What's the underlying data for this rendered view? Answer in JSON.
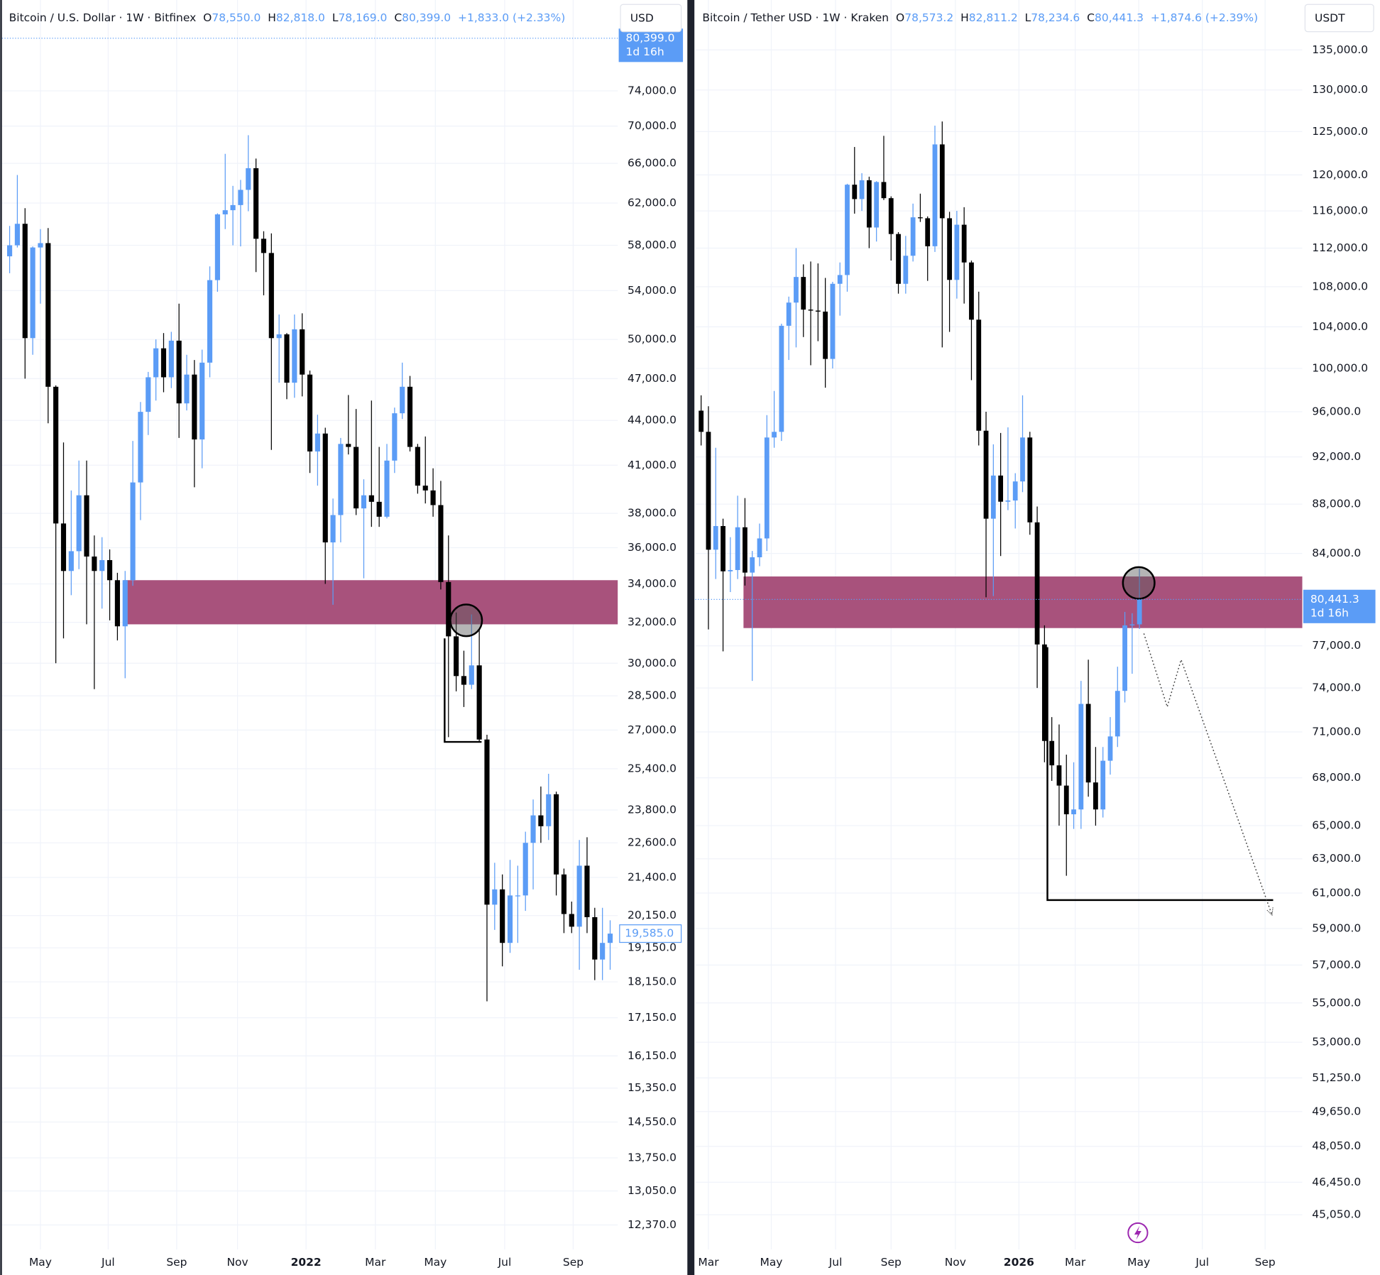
{
  "chart_data": [
    {
      "type": "candlestick",
      "header": {
        "symbol": "Bitcoin / U.S. Dollar · 1W · Bitfinex",
        "ohlc": [
          {
            "key": "O",
            "value": "78,550.0"
          },
          {
            "key": "H",
            "value": "82,818.0"
          },
          {
            "key": "L",
            "value": "78,169.0"
          },
          {
            "key": "C",
            "value": "80,399.0"
          }
        ],
        "change": "+1,833.0 (+2.33%)"
      },
      "currency": "USD",
      "open": [
        57000,
        58000,
        60000,
        50100,
        57800,
        58200,
        46400,
        37400,
        34700,
        35800,
        39100,
        35500,
        34700,
        35300,
        34200,
        31800,
        34200,
        39900,
        44600,
        47100,
        49300,
        47100,
        49900,
        45200,
        47300,
        42700,
        48200,
        54900,
        60900,
        61300,
        61800,
        63300,
        65500,
        58600,
        57300,
        50100,
        50400,
        46700,
        50800,
        47300,
        41900,
        43100,
        36300,
        37900,
        42400,
        42200,
        38300,
        39100,
        38700,
        37800,
        41300,
        44500,
        46400,
        42200,
        39700,
        39400,
        38500,
        34100,
        31300,
        29400,
        29000,
        29900,
        26600,
        20500,
        21000,
        19300,
        20800,
        20800,
        22600,
        23600,
        23200,
        24400,
        21500,
        20200,
        19800,
        21800,
        20100,
        18800,
        19300
      ],
      "high": [
        59800,
        64800,
        61500,
        57900,
        59500,
        59600,
        46500,
        42500,
        39400,
        41300,
        41300,
        36700,
        36600,
        35900,
        34600,
        34700,
        42600,
        45300,
        47500,
        50000,
        50500,
        50600,
        52900,
        48800,
        48400,
        49200,
        56100,
        61000,
        67000,
        63700,
        64300,
        69000,
        66500,
        59300,
        59100,
        52000,
        50500,
        52000,
        52100,
        47600,
        44400,
        43500,
        38900,
        42800,
        45800,
        44800,
        40100,
        45400,
        42200,
        42400,
        44900,
        48200,
        47200,
        42400,
        42900,
        40800,
        40000,
        36700,
        32500,
        30600,
        32400,
        31700,
        26800,
        21900,
        21500,
        22000,
        21800,
        23000,
        24200,
        24700,
        25200,
        24500,
        21700,
        20600,
        22700,
        22800,
        20400,
        20400,
        20000
      ],
      "low": [
        55500,
        57800,
        47000,
        48800,
        52900,
        43800,
        30000,
        31200,
        33400,
        34800,
        31900,
        28800,
        32700,
        32100,
        31100,
        29300,
        33900,
        37600,
        43000,
        45400,
        46000,
        46300,
        42800,
        44700,
        39600,
        40800,
        47100,
        53900,
        59500,
        58000,
        57900,
        61200,
        55600,
        53600,
        42000,
        46700,
        45500,
        45600,
        45700,
        40500,
        39700,
        34000,
        32900,
        36300,
        41700,
        37900,
        34300,
        37200,
        37200,
        37700,
        40500,
        44100,
        41900,
        39200,
        38600,
        37800,
        33700,
        26700,
        28700,
        28000,
        28800,
        26500,
        17600,
        19700,
        18600,
        19000,
        19300,
        20300,
        21000,
        22600,
        22700,
        20800,
        19600,
        19600,
        18500,
        19600,
        18200,
        18200,
        18500
      ],
      "close": [
        58000,
        60000,
        50100,
        57800,
        58200,
        46400,
        37400,
        34700,
        35800,
        39100,
        35500,
        34700,
        35300,
        34200,
        31800,
        34200,
        39900,
        44600,
        47100,
        49300,
        47100,
        49900,
        45200,
        47300,
        42700,
        48200,
        54900,
        60900,
        61300,
        61800,
        63300,
        65500,
        58600,
        57300,
        50100,
        50400,
        46700,
        50800,
        47300,
        41900,
        43100,
        36300,
        37900,
        42400,
        42200,
        38300,
        39100,
        38700,
        37800,
        41300,
        44500,
        46400,
        42200,
        39700,
        39400,
        38500,
        34100,
        31300,
        29400,
        29000,
        29900,
        26600,
        20500,
        21000,
        19300,
        20800,
        20800,
        22600,
        23600,
        23200,
        24400,
        21500,
        20200,
        19800,
        21800,
        20100,
        18800,
        19300,
        19585
      ],
      "up_color": "#5b9cf6",
      "down_color": "#000000",
      "xlim": [
        -1,
        79
      ],
      "xticks": [
        {
          "value": 4,
          "label": "May"
        },
        {
          "value": 12.8,
          "label": "Jul"
        },
        {
          "value": 21.7,
          "label": "Sep"
        },
        {
          "value": 29.6,
          "label": "Nov"
        },
        {
          "value": 38.5,
          "label": "2022"
        },
        {
          "value": 47.5,
          "label": "Mar"
        },
        {
          "value": 55.3,
          "label": "May"
        },
        {
          "value": 64.3,
          "label": "Jul"
        },
        {
          "value": 73.2,
          "label": "Sep"
        }
      ],
      "ylim": [
        11900,
        85400
      ],
      "log_scale": true,
      "grid": true,
      "yticks": [
        {
          "value": 74000,
          "label": "74,000.0"
        },
        {
          "value": 70000,
          "label": "70,000.0"
        },
        {
          "value": 66000,
          "label": "66,000.0"
        },
        {
          "value": 62000,
          "label": "62,000.0"
        },
        {
          "value": 58000,
          "label": "58,000.0"
        },
        {
          "value": 54000,
          "label": "54,000.0"
        },
        {
          "value": 50000,
          "label": "50,000.0"
        },
        {
          "value": 47000,
          "label": "47,000.0"
        },
        {
          "value": 44000,
          "label": "44,000.0"
        },
        {
          "value": 41000,
          "label": "41,000.0"
        },
        {
          "value": 38000,
          "label": "38,000.0"
        },
        {
          "value": 36000,
          "label": "36,000.0"
        },
        {
          "value": 34000,
          "label": "34,000.0"
        },
        {
          "value": 32000,
          "label": "32,000.0"
        },
        {
          "value": 30000,
          "label": "30,000.0"
        },
        {
          "value": 28500,
          "label": "28,500.0"
        },
        {
          "value": 27000,
          "label": "27,000.0"
        },
        {
          "value": 25400,
          "label": "25,400.0"
        },
        {
          "value": 23800,
          "label": "23,800.0"
        },
        {
          "value": 22600,
          "label": "22,600.0"
        },
        {
          "value": 21400,
          "label": "21,400.0"
        },
        {
          "value": 20150,
          "label": "20,150.0"
        },
        {
          "value": 19150,
          "label": "19,150.0"
        },
        {
          "value": 18150,
          "label": "18,150.0"
        },
        {
          "value": 17150,
          "label": "17,150.0"
        },
        {
          "value": 16150,
          "label": "16,150.0"
        },
        {
          "value": 15350,
          "label": "15,350.0"
        },
        {
          "value": 14550,
          "label": "14,550.0"
        },
        {
          "value": 13750,
          "label": "13,750.0"
        },
        {
          "value": 13050,
          "label": "13,050.0"
        },
        {
          "value": 12370,
          "label": "12,370.0"
        }
      ],
      "last_price": {
        "value": 80399,
        "label": "80,399.0",
        "countdown": "1d 16h"
      },
      "visible_price": {
        "value": 19585,
        "label": "19,585.0"
      },
      "zone": {
        "x": 14.8,
        "top": 34200,
        "bottom": 31900,
        "color": "#a8527c"
      },
      "box": {
        "x": [
          56.5,
          61.3
        ],
        "top": 31200,
        "bottom": 26500
      },
      "circle": {
        "x": 59.3,
        "value": 32100
      }
    },
    {
      "type": "candlestick",
      "header": {
        "symbol": "Bitcoin / Tether USD · 1W · Kraken",
        "ohlc": [
          {
            "key": "O",
            "value": "78,573.2"
          },
          {
            "key": "H",
            "value": "82,811.2"
          },
          {
            "key": "L",
            "value": "78,234.6"
          },
          {
            "key": "C",
            "value": "80,441.3"
          }
        ],
        "change": "+1,874.6 (+2.39%)"
      },
      "currency": "USDT",
      "open": [
        96100,
        94200,
        84300,
        86200,
        82600,
        82700,
        86100,
        82500,
        83700,
        85200,
        93700,
        94200,
        104100,
        106400,
        109000,
        105700,
        105600,
        105500,
        100900,
        108300,
        109200,
        118900,
        117300,
        119400,
        114200,
        119200,
        117400,
        113500,
        108300,
        111200,
        115300,
        115200,
        112200,
        123500,
        115200,
        108700,
        114500,
        110500,
        104700,
        94300,
        86800,
        90400,
        88200,
        88300,
        89900,
        93700,
        86500,
        77100,
        70400,
        68800,
        67500,
        65700,
        66000,
        72900,
        67700,
        66000,
        69100,
        70700,
        73800,
        78500,
        78573
      ],
      "high": [
        97500,
        96500,
        92800,
        86800,
        85300,
        88700,
        88500,
        84200,
        86400,
        95700,
        97900,
        104300,
        107000,
        112000,
        110300,
        110600,
        110400,
        108900,
        108500,
        110500,
        119000,
        123200,
        120200,
        119800,
        119300,
        124500,
        117600,
        113700,
        113300,
        116800,
        117900,
        115400,
        125700,
        126200,
        115900,
        116000,
        116400,
        110700,
        107500,
        96000,
        93100,
        94100,
        94600,
        90600,
        97500,
        94200,
        87800,
        78500,
        72000,
        71500,
        69500,
        69000,
        74500,
        76000,
        70000,
        70000,
        72000,
        75500,
        79500,
        79400,
        82811
      ],
      "low": [
        93000,
        78200,
        82000,
        76600,
        81000,
        82000,
        81500,
        74500,
        83000,
        84200,
        92800,
        93400,
        100800,
        102000,
        103000,
        100300,
        102600,
        98200,
        100000,
        105100,
        107500,
        115700,
        116000,
        112000,
        112700,
        117200,
        110700,
        107300,
        107300,
        110600,
        114800,
        108600,
        111600,
        102000,
        103500,
        106800,
        106300,
        98900,
        93000,
        80600,
        80700,
        83800,
        87500,
        86000,
        89000,
        85500,
        74000,
        69000,
        67800,
        65000,
        62000,
        64800,
        64800,
        66800,
        65000,
        65500,
        68200,
        70000,
        73000,
        75000,
        78234
      ],
      "close": [
        94200,
        84300,
        86200,
        82600,
        82700,
        86100,
        82500,
        83700,
        85200,
        93700,
        94200,
        104100,
        106400,
        109000,
        105700,
        105600,
        105500,
        100900,
        108300,
        109200,
        118900,
        117300,
        119400,
        114200,
        119200,
        117400,
        113500,
        108300,
        111200,
        115300,
        115200,
        112200,
        123500,
        115200,
        108700,
        114500,
        110500,
        104700,
        94300,
        86800,
        90400,
        88200,
        88300,
        89900,
        93700,
        86500,
        77100,
        70400,
        68800,
        67500,
        65700,
        66000,
        72900,
        67700,
        66000,
        69100,
        70700,
        73800,
        78500,
        78573,
        80441.3
      ],
      "up_color": "#5b9cf6",
      "down_color": "#000000",
      "xlim": [
        -0.8,
        82.3
      ],
      "xticks": [
        {
          "value": 1,
          "label": "Mar"
        },
        {
          "value": 9.6,
          "label": "May"
        },
        {
          "value": 18.4,
          "label": "Jul"
        },
        {
          "value": 26,
          "label": "Sep"
        },
        {
          "value": 34.8,
          "label": "Nov"
        },
        {
          "value": 43.5,
          "label": "2026"
        },
        {
          "value": 51.2,
          "label": "Mar"
        },
        {
          "value": 59.9,
          "label": "May"
        },
        {
          "value": 68.6,
          "label": "Jul"
        },
        {
          "value": 77.2,
          "label": "Sep"
        }
      ],
      "ylim": [
        43600,
        141500
      ],
      "log_scale": true,
      "grid": true,
      "yticks": [
        {
          "value": 135000,
          "label": "135,000.0"
        },
        {
          "value": 130000,
          "label": "130,000.0"
        },
        {
          "value": 125000,
          "label": "125,000.0"
        },
        {
          "value": 120000,
          "label": "120,000.0"
        },
        {
          "value": 116000,
          "label": "116,000.0"
        },
        {
          "value": 112000,
          "label": "112,000.0"
        },
        {
          "value": 108000,
          "label": "108,000.0"
        },
        {
          "value": 104000,
          "label": "104,000.0"
        },
        {
          "value": 100000,
          "label": "100,000.0"
        },
        {
          "value": 96000,
          "label": "96,000.0"
        },
        {
          "value": 92000,
          "label": "92,000.0"
        },
        {
          "value": 88000,
          "label": "88,000.0"
        },
        {
          "value": 84000,
          "label": "84,000.0"
        },
        {
          "value": 77000,
          "label": "77,000.0"
        },
        {
          "value": 74000,
          "label": "74,000.0"
        },
        {
          "value": 71000,
          "label": "71,000.0"
        },
        {
          "value": 68000,
          "label": "68,000.0"
        },
        {
          "value": 65000,
          "label": "65,000.0"
        },
        {
          "value": 63000,
          "label": "63,000.0"
        },
        {
          "value": 61000,
          "label": "61,000.0"
        },
        {
          "value": 59000,
          "label": "59,000.0"
        },
        {
          "value": 57000,
          "label": "57,000.0"
        },
        {
          "value": 55000,
          "label": "55,000.0"
        },
        {
          "value": 53000,
          "label": "53,000.0"
        },
        {
          "value": 51250,
          "label": "51,250.0"
        },
        {
          "value": 49650,
          "label": "49,650.0"
        },
        {
          "value": 48050,
          "label": "48,050.0"
        },
        {
          "value": 46450,
          "label": "46,450.0"
        },
        {
          "value": 45050,
          "label": "45,050.0"
        }
      ],
      "last_price": {
        "value": 80441.3,
        "label": "80,441.3",
        "countdown": "1d 16h"
      },
      "zone": {
        "x": 5.8,
        "top": 82200,
        "bottom": 78300,
        "color": "#a8527c"
      },
      "box": {
        "x": [
          47.4,
          78.3
        ],
        "top": 76900,
        "bottom": 60600
      },
      "circle": {
        "x": 59.9,
        "value": 81700
      },
      "path": {
        "x": [
          60.6,
          63.8,
          65.7,
          78.1
        ],
        "values": [
          77900,
          72700,
          76000,
          59800
        ]
      }
    }
  ]
}
